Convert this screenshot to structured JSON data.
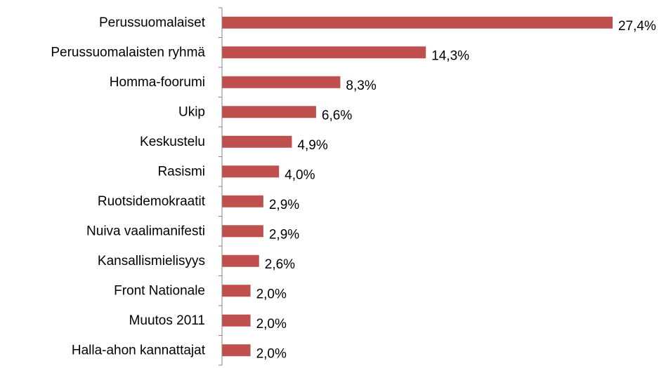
{
  "chart_data": {
    "type": "bar",
    "orientation": "horizontal",
    "categories": [
      "Perussuomalaiset",
      "Perussuomalaisten ryhmä",
      "Homma-foorumi",
      "Ukip",
      "Keskustelu",
      "Rasismi",
      "Ruotsidemokraatit",
      "Nuiva vaalimanifesti",
      "Kansallismielisyys",
      "Front Nationale",
      "Muutos 2011",
      "Halla-ahon kannattajat"
    ],
    "values": [
      27.4,
      14.3,
      8.3,
      6.6,
      4.9,
      4.0,
      2.9,
      2.9,
      2.6,
      2.0,
      2.0,
      2.0
    ],
    "value_labels": [
      "27,4%",
      "14,3%",
      "8,3%",
      "6,6%",
      "4,9%",
      "4,0%",
      "2,9%",
      "2,9%",
      "2,6%",
      "2,0%",
      "2,0%",
      "2,0%"
    ],
    "title": "",
    "xlabel": "",
    "ylabel": "",
    "xlim": [
      0,
      27.4
    ],
    "bar_color": "#c0504d",
    "axis_color": "#868686",
    "grid": false,
    "legend": "none"
  }
}
